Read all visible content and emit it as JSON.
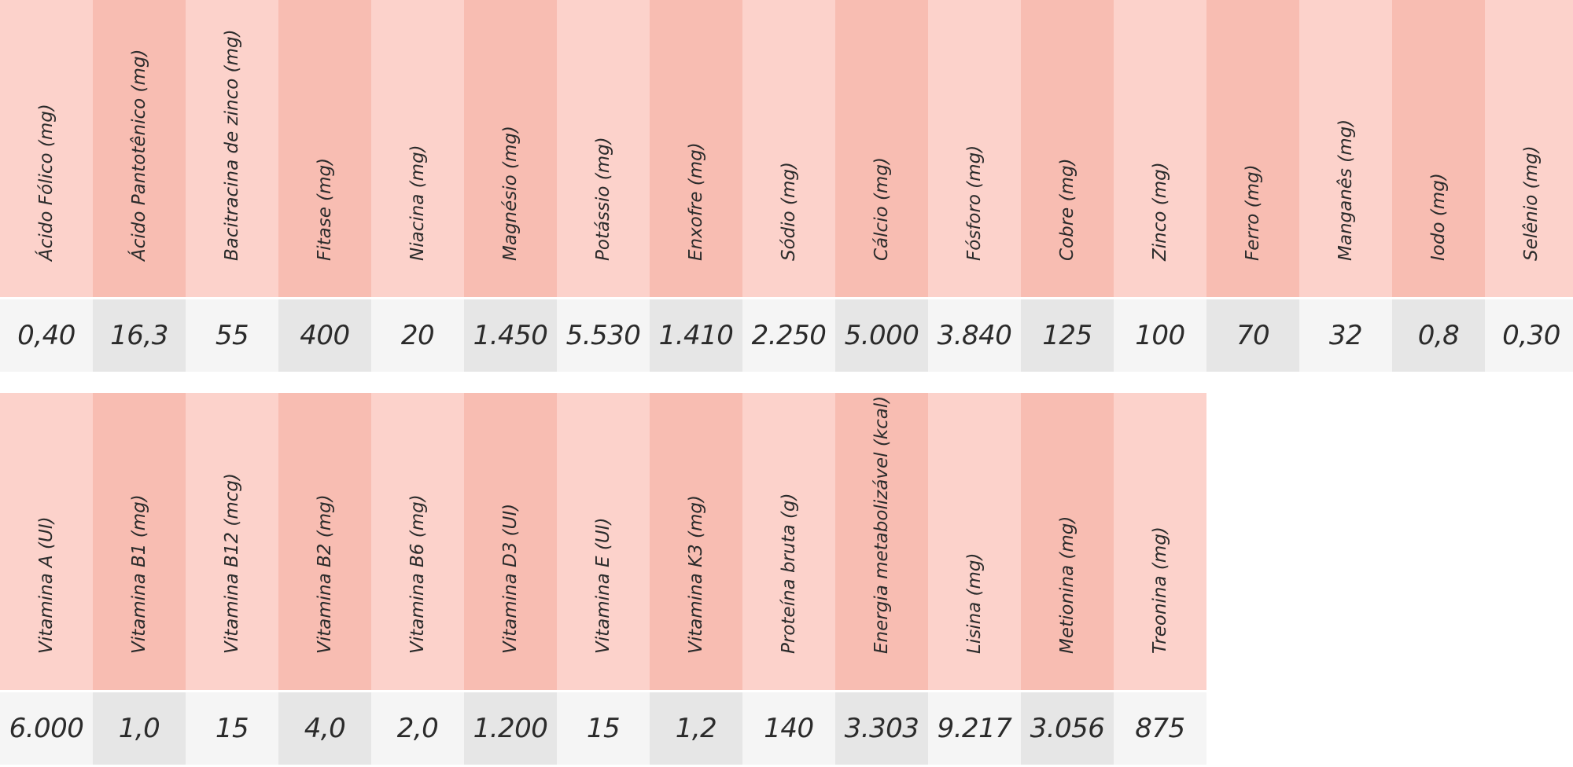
{
  "table_1": {
    "columns": [
      {
        "header": "Ácido Fólico (mg)",
        "value": "0,40"
      },
      {
        "header": "Ácido Pantotênico  (mg)",
        "value": "16,3"
      },
      {
        "header": "Bacitracina de zinco  (mg)",
        "value": "55"
      },
      {
        "header": "Fitase  (mg)",
        "value": "400"
      },
      {
        "header": "Niacina  (mg)",
        "value": "20"
      },
      {
        "header": "Magnésio  (mg)",
        "value": "1.450"
      },
      {
        "header": "Potássio  (mg)",
        "value": "5.530"
      },
      {
        "header": "Enxofre  (mg)",
        "value": "1.410"
      },
      {
        "header": "Sódio  (mg)",
        "value": "2.250"
      },
      {
        "header": "Cálcio  (mg)",
        "value": "5.000"
      },
      {
        "header": "Fósforo (mg)",
        "value": "3.840"
      },
      {
        "header": "Cobre (mg)",
        "value": "125"
      },
      {
        "header": "Zinco (mg)",
        "value": "100"
      },
      {
        "header": "Ferro (mg)",
        "value": "70"
      },
      {
        "header": "Manganês (mg)",
        "value": "32"
      },
      {
        "header": "Iodo (mg)",
        "value": "0,8"
      },
      {
        "header": "Selênio (mg)",
        "value": "0,30"
      }
    ]
  },
  "table_2": {
    "columns": [
      {
        "header": "Vitamina A (UI)",
        "value": "6.000"
      },
      {
        "header": "Vitamina B1 (mg)",
        "value": "1,0"
      },
      {
        "header": "Vitamina B12 (mcg)",
        "value": "15"
      },
      {
        "header": "Vitamina B2 (mg)",
        "value": "4,0"
      },
      {
        "header": "Vitamina B6 (mg)",
        "value": "2,0"
      },
      {
        "header": "Vitamina D3 (UI)",
        "value": "1.200"
      },
      {
        "header": "Vitamina E (UI)",
        "value": "15"
      },
      {
        "header": "Vitamina K3 (mg)",
        "value": "1,2"
      },
      {
        "header": "Proteína bruta (g)",
        "value": "140"
      },
      {
        "header": "Energia metabolizável (kcal)",
        "value": "3.303"
      },
      {
        "header": "Lisina (mg)",
        "value": "9.217"
      },
      {
        "header": "Metionina (mg)",
        "value": "3.056"
      },
      {
        "header": "Treonina (mg)",
        "value": "875"
      }
    ]
  },
  "colors": {
    "header_light": "#fcd2cb",
    "header_dark": "#f8bdb2",
    "value_light": "#f5f5f5",
    "value_dark": "#e6e6e6",
    "text": "#2b2b2b"
  }
}
